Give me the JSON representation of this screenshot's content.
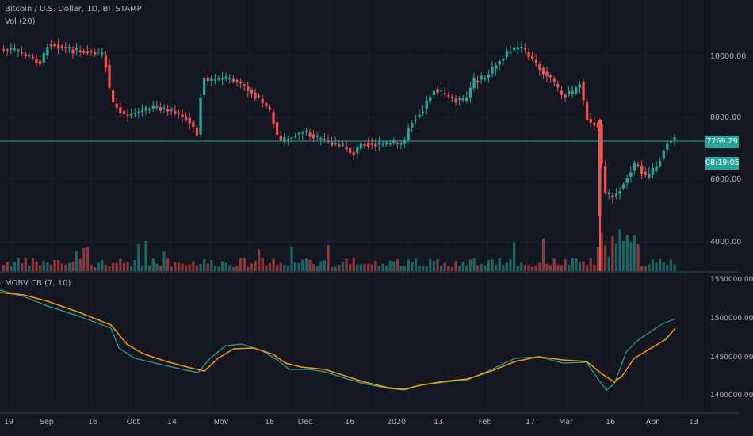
{
  "symbol_legend": "Bitcoin / U.S. Dollar, 1D, BITSTAMP",
  "volume_legend": "Vol (20)",
  "indicator_legend": "MOBV CB (7, 10)",
  "last_price": "7269.29",
  "countdown": "08:19:05",
  "price_axis": [
    "10000.00",
    "8000.00",
    "6000.00",
    "4000.00"
  ],
  "osc_axis": [
    "1550000.00",
    "1500000.00",
    "1450000.00",
    "1400000.00"
  ],
  "time_axis": [
    "19",
    "Sep",
    "16",
    "Oct",
    "14",
    "Nov",
    "18",
    "Dec",
    "16",
    "2020",
    "13",
    "Feb",
    "17",
    "Mar",
    "16",
    "Apr",
    "13"
  ],
  "colors": {
    "up": "#26a69a",
    "down": "#ef5350",
    "fast": "#26a69a",
    "slow": "#ff9800",
    "background": "#131722"
  }
}
